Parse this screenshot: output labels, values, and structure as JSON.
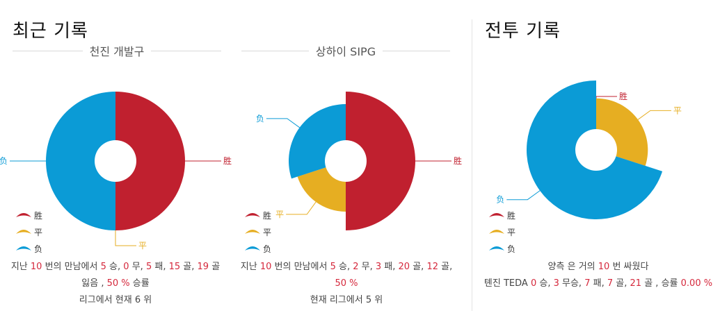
{
  "colors": {
    "win": "#c0202f",
    "draw": "#e6ae22",
    "loss": "#0b9bd6"
  },
  "recent": {
    "title": "최근 기록",
    "legend": {
      "win": "胜",
      "draw": "平",
      "loss": "负"
    },
    "teams": [
      {
        "name": "천진 개발구",
        "chart_data": {
          "type": "pie",
          "categories": [
            "胜",
            "平",
            "负"
          ],
          "values": [
            5,
            0,
            5
          ]
        },
        "stats": {
          "pre": "지난",
          "matches": "10",
          "mid": "번의 만남에서",
          "wins": "5",
          "w_lbl": "승,",
          "draws": "0",
          "d_lbl": "무,",
          "losses": "5",
          "l_lbl": "패,",
          "gf": "15",
          "gf_lbl": "골,",
          "ga": "19",
          "ga_lbl": "골",
          "ga_lbl2": "잃음 ,",
          "rate": "50 %",
          "rate_lbl": "승률",
          "rank_line": "리그에서 현재 6 위"
        }
      },
      {
        "name": "상하이 SIPG",
        "chart_data": {
          "type": "pie",
          "categories": [
            "胜",
            "平",
            "负"
          ],
          "values": [
            5,
            2,
            3
          ]
        },
        "stats": {
          "pre": "지난",
          "matches": "10",
          "mid": "번의 만남에서",
          "wins": "5",
          "w_lbl": "승,",
          "draws": "2",
          "d_lbl": "무,",
          "losses": "3",
          "l_lbl": "패,",
          "gf": "20",
          "gf_lbl": "골,",
          "ga": "12",
          "ga_lbl": "골,",
          "rate": "50 %",
          "rank_line": "현재 리그에서 5 위"
        }
      }
    ]
  },
  "h2h": {
    "title": "전투 기록",
    "legend": {
      "win": "胜",
      "draw": "平",
      "loss": "负"
    },
    "chart_data": {
      "type": "pie",
      "categories": [
        "胜",
        "平",
        "负"
      ],
      "values": [
        0,
        3,
        7
      ]
    },
    "line1": {
      "pre": "양측 은 거의",
      "count": "10",
      "post": "번 싸웠다"
    },
    "line2": {
      "team": "톈진 TEDA",
      "wins": "0",
      "w_lbl": "승,",
      "draws": "3",
      "d_lbl": "무승,",
      "losses": "7",
      "l_lbl": "패,",
      "gf": "7",
      "gf_lbl": "골,",
      "ga": "21",
      "ga_lbl": "골 , 승률",
      "rate": "0.00 %"
    }
  }
}
